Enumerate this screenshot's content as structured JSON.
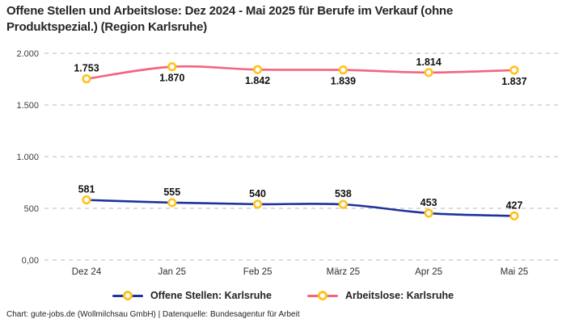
{
  "title": "Offene Stellen und Arbeitslose: Dez 2024 - Mai 2025 für Berufe im Verkauf (ohne Produktspezial.) (Region Karlsruhe)",
  "footer": "Chart: gute-jobs.de (Wollmilchsau GmbH) | Datenquelle: Bundesagentur für Arbeit",
  "colors": {
    "open_positions": "#1e339b",
    "unemployed": "#f4647d",
    "marker_ring": "#ffc31e",
    "grid": "#c8c8c8",
    "tick_text": "#3c3c3c",
    "label_text": "#111111"
  },
  "chart_data": {
    "type": "line",
    "title": "Offene Stellen und Arbeitslose: Dez 2024 - Mai 2025 für Berufe im Verkauf (ohne Produktspezial.) (Region Karlsruhe)",
    "categories": [
      "Dez 24",
      "Jan 25",
      "Feb 25",
      "März 25",
      "Apr 25",
      "Mai 25"
    ],
    "series": [
      {
        "name": "Offene Stellen: Karlsruhe",
        "color": "#1e339b",
        "values": [
          581,
          555,
          540,
          538,
          453,
          427
        ],
        "labels": [
          "581",
          "555",
          "540",
          "538",
          "453",
          "427"
        ],
        "label_placement": [
          "above",
          "above",
          "above",
          "above",
          "above",
          "above"
        ]
      },
      {
        "name": "Arbeitslose: Karlsruhe",
        "color": "#f4647d",
        "values": [
          1753,
          1870,
          1842,
          1839,
          1814,
          1837
        ],
        "labels": [
          "1.753",
          "1.870",
          "1.842",
          "1.839",
          "1.814",
          "1.837"
        ],
        "label_placement": [
          "above",
          "below",
          "below",
          "below",
          "above",
          "below"
        ]
      }
    ],
    "y_ticks": [
      {
        "value": 0,
        "label": "0,00"
      },
      {
        "value": 500,
        "label": "500"
      },
      {
        "value": 1000,
        "label": "1.000"
      },
      {
        "value": 1500,
        "label": "1.500"
      },
      {
        "value": 2000,
        "label": "2.000"
      }
    ],
    "ylim": [
      0,
      2000
    ],
    "grid": "dashed-horizontal",
    "legend_position": "bottom-center",
    "marker": "ring"
  }
}
